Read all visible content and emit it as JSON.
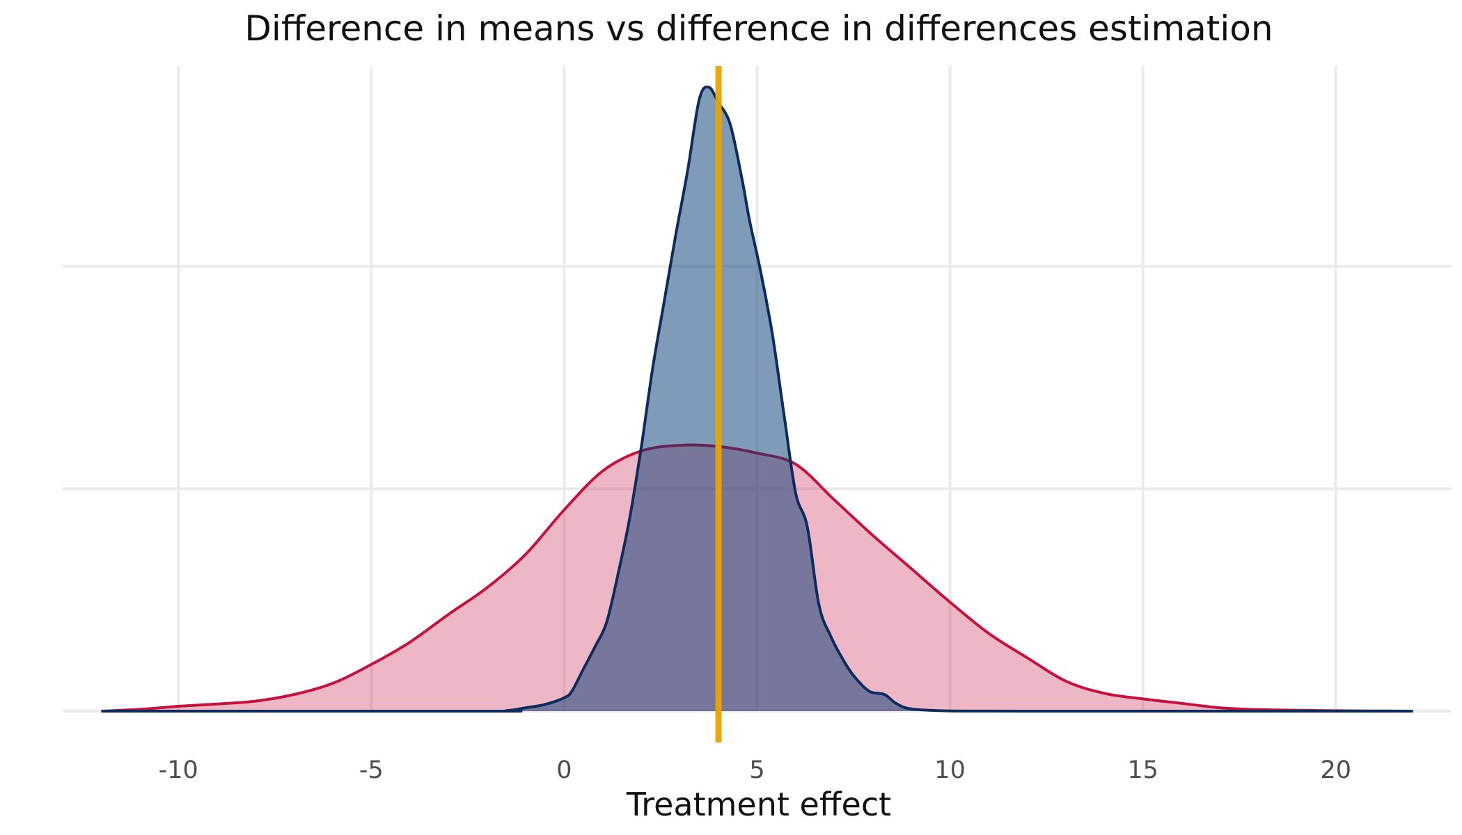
{
  "chart_data": {
    "type": "area",
    "title": "Difference in means vs difference in differences estimation",
    "xlabel": "Treatment effect",
    "ylabel": "",
    "xlim": [
      -13.0,
      23.0
    ],
    "ylim": [
      0,
      0.29
    ],
    "x_ticks": [
      -10,
      -5,
      0,
      5,
      10,
      15,
      20
    ],
    "x_tick_labels": [
      "-10",
      "-5",
      "0",
      "5",
      "10",
      "15",
      "20"
    ],
    "y_gridlines": [
      0,
      0.1,
      0.2
    ],
    "grid": true,
    "legend": "none",
    "reference_line": {
      "x": 4,
      "color": "#e8a400"
    },
    "series": [
      {
        "fill": "#c8103e",
        "stroke": "#c8103e",
        "fill_opacity": 0.3,
        "points": [
          [
            -12,
            0.0
          ],
          [
            -11,
            0.0008
          ],
          [
            -10,
            0.0022
          ],
          [
            -9,
            0.0032
          ],
          [
            -8,
            0.0045
          ],
          [
            -7,
            0.0075
          ],
          [
            -6,
            0.0125
          ],
          [
            -5,
            0.021
          ],
          [
            -4,
            0.031
          ],
          [
            -3,
            0.0435
          ],
          [
            -2,
            0.0555
          ],
          [
            -1,
            0.0705
          ],
          [
            0,
            0.0905
          ],
          [
            1,
            0.108
          ],
          [
            2,
            0.117
          ],
          [
            3,
            0.1195
          ],
          [
            4,
            0.119
          ],
          [
            5,
            0.116
          ],
          [
            6,
            0.111
          ],
          [
            7,
            0.095
          ],
          [
            8,
            0.079
          ],
          [
            9,
            0.064
          ],
          [
            10,
            0.049
          ],
          [
            11,
            0.035
          ],
          [
            12,
            0.024
          ],
          [
            13,
            0.0135
          ],
          [
            14,
            0.008
          ],
          [
            15,
            0.0055
          ],
          [
            16,
            0.0035
          ],
          [
            17,
            0.0015
          ],
          [
            18,
            0.0007
          ],
          [
            19,
            0.0004
          ],
          [
            20,
            0.0002
          ],
          [
            21,
            0.0001
          ],
          [
            22,
            0.0
          ]
        ]
      },
      {
        "fill": "#003876",
        "stroke": "#0d2b5c",
        "fill_opacity": 0.5,
        "points": [
          [
            -12,
            0.0
          ],
          [
            -2,
            0.0
          ],
          [
            -1.5,
            0.0002
          ],
          [
            -1,
            0.0015
          ],
          [
            -0.5,
            0.003
          ],
          [
            0,
            0.006
          ],
          [
            0.2,
            0.009
          ],
          [
            0.5,
            0.019
          ],
          [
            0.8,
            0.029
          ],
          [
            1.1,
            0.04
          ],
          [
            1.4,
            0.062
          ],
          [
            1.7,
            0.087
          ],
          [
            2.0,
            0.119
          ],
          [
            2.3,
            0.155
          ],
          [
            2.6,
            0.185
          ],
          [
            2.9,
            0.215
          ],
          [
            3.2,
            0.243
          ],
          [
            3.5,
            0.275
          ],
          [
            3.75,
            0.2805
          ],
          [
            4.0,
            0.2735
          ],
          [
            4.3,
            0.264
          ],
          [
            4.6,
            0.24
          ],
          [
            4.8,
            0.221
          ],
          [
            5.1,
            0.197
          ],
          [
            5.4,
            0.169
          ],
          [
            5.7,
            0.133
          ],
          [
            6.0,
            0.098
          ],
          [
            6.3,
            0.083
          ],
          [
            6.6,
            0.048
          ],
          [
            6.9,
            0.034
          ],
          [
            7.2,
            0.024
          ],
          [
            7.5,
            0.016
          ],
          [
            7.9,
            0.009
          ],
          [
            8.3,
            0.0075
          ],
          [
            8.6,
            0.0035
          ],
          [
            9,
            0.001
          ],
          [
            10,
            0.0001
          ],
          [
            12,
            0.0
          ],
          [
            22,
            0.0
          ]
        ]
      }
    ]
  }
}
